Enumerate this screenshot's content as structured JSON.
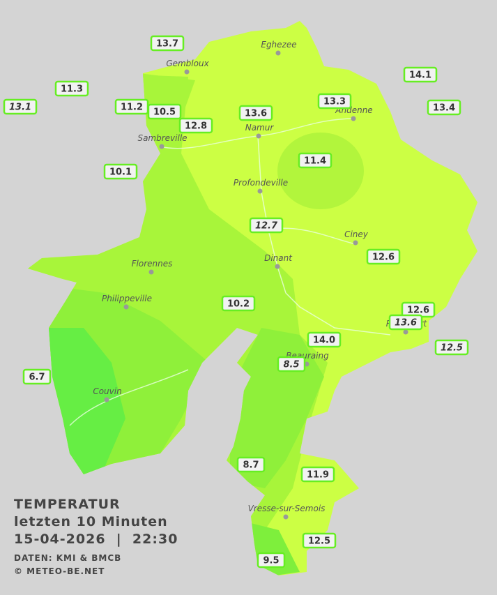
{
  "title": "TEMPERATUR",
  "subtitle": "letzten 10 Minuten",
  "datetime": "15-04-2026  |  22:30",
  "source": "DATEN: KMI & BMCB",
  "copyright": "© METEO-BE.NET",
  "cities": [
    "Eghezee",
    "Gembloux",
    "Andenne",
    "Namur",
    "Sambreville",
    "Profondeville",
    "Ciney",
    "Dinant",
    "Florennes",
    "Philippeville",
    "Rochefort",
    "Beauraing",
    "Couvin",
    "Vresse-sur-Semois"
  ],
  "stations": [
    {
      "label": "13.7",
      "italic": false
    },
    {
      "label": "11.3",
      "italic": false
    },
    {
      "label": "13.1",
      "italic": true
    },
    {
      "label": "11.2",
      "italic": false
    },
    {
      "label": "10.5",
      "italic": false
    },
    {
      "label": "12.8",
      "italic": false
    },
    {
      "label": "13.6",
      "italic": false
    },
    {
      "label": "13.3",
      "italic": false
    },
    {
      "label": "14.1",
      "italic": false
    },
    {
      "label": "13.4",
      "italic": false
    },
    {
      "label": "10.1",
      "italic": false
    },
    {
      "label": "11.4",
      "italic": false
    },
    {
      "label": "12.7",
      "italic": true
    },
    {
      "label": "12.6",
      "italic": false
    },
    {
      "label": "10.2",
      "italic": false
    },
    {
      "label": "12.6",
      "italic": false
    },
    {
      "label": "13.6",
      "italic": true
    },
    {
      "label": "14.0",
      "italic": false
    },
    {
      "label": "12.5",
      "italic": true
    },
    {
      "label": "8.5",
      "italic": true
    },
    {
      "label": "6.7",
      "italic": false
    },
    {
      "label": "8.7",
      "italic": false
    },
    {
      "label": "11.9",
      "italic": false
    },
    {
      "label": "12.5",
      "italic": false
    },
    {
      "label": "9.5",
      "italic": false
    }
  ]
}
